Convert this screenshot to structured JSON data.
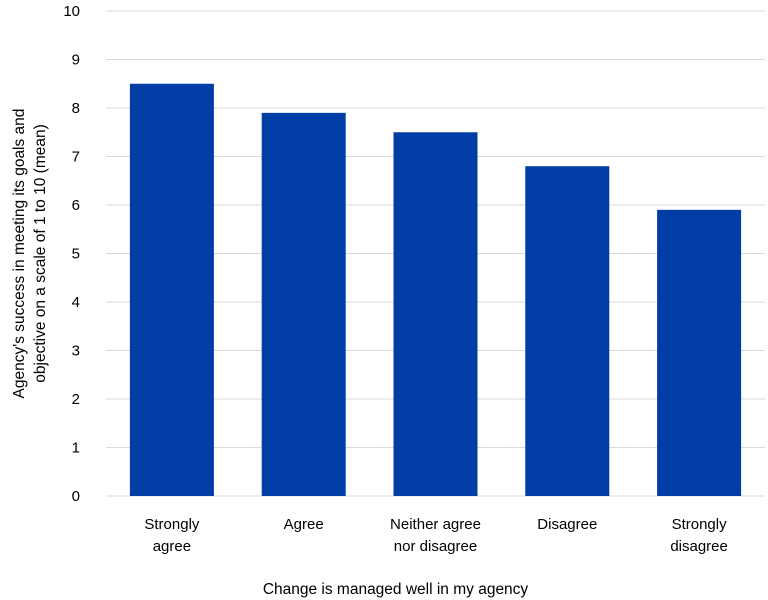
{
  "chart_data": {
    "type": "bar",
    "categories": [
      [
        "Strongly",
        "agree"
      ],
      [
        "Agree"
      ],
      [
        "Neither agree",
        "nor disagree"
      ],
      [
        "Disagree"
      ],
      [
        "Strongly",
        "disagree"
      ]
    ],
    "values": [
      8.5,
      7.9,
      7.5,
      6.8,
      5.9
    ],
    "ylabel": [
      "Agency's success in meeting its goals and",
      "objective on a scale of 1 to 10 (mean)"
    ],
    "xlabel": "Change is managed well in my agency",
    "ylim": [
      0,
      10
    ],
    "yticks": [
      "0",
      "1",
      "2",
      "3",
      "4",
      "5",
      "6",
      "7",
      "8",
      "9",
      "10"
    ],
    "grid": true,
    "bar_color": "#003da5",
    "grid_color": "#d9d9d9"
  }
}
